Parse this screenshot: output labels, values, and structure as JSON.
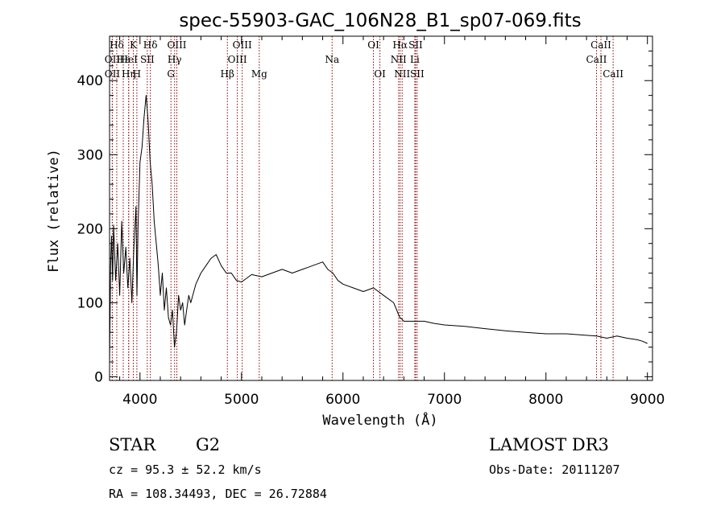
{
  "chart_data": {
    "type": "line",
    "title": "spec-55903-GAC_106N28_B1_sp07-069.fits",
    "xlabel": "Wavelength (Å)",
    "ylabel": "Flux (relative)",
    "xlim": [
      3700,
      9050
    ],
    "ylim": [
      -5,
      460
    ],
    "x_ticks": [
      4000,
      5000,
      6000,
      7000,
      8000,
      9000
    ],
    "y_ticks": [
      0,
      100,
      200,
      300,
      400
    ],
    "grid": false,
    "legend": "none",
    "line_color": "#000000",
    "marker_color": "#8b0000",
    "spectrum": {
      "x": [
        3700,
        3710,
        3720,
        3730,
        3740,
        3760,
        3780,
        3800,
        3820,
        3840,
        3860,
        3880,
        3900,
        3920,
        3940,
        3960,
        3970,
        3980,
        4000,
        4020,
        4040,
        4060,
        4080,
        4100,
        4120,
        4140,
        4160,
        4180,
        4200,
        4220,
        4240,
        4260,
        4280,
        4300,
        4320,
        4340,
        4360,
        4380,
        4400,
        4420,
        4440,
        4460,
        4480,
        4500,
        4550,
        4600,
        4650,
        4700,
        4750,
        4800,
        4850,
        4900,
        4950,
        5000,
        5100,
        5200,
        5300,
        5400,
        5500,
        5600,
        5700,
        5800,
        5850,
        5900,
        5950,
        6000,
        6100,
        6200,
        6300,
        6400,
        6500,
        6560,
        6580,
        6600,
        6700,
        6800,
        6900,
        7000,
        7200,
        7400,
        7600,
        7800,
        8000,
        8200,
        8400,
        8500,
        8600,
        8700,
        8800,
        8900,
        8950,
        9000
      ],
      "y": [
        20,
        150,
        190,
        130,
        205,
        130,
        180,
        110,
        210,
        140,
        175,
        120,
        160,
        100,
        175,
        230,
        110,
        200,
        290,
        310,
        350,
        380,
        345,
        290,
        260,
        210,
        180,
        150,
        110,
        140,
        90,
        120,
        80,
        70,
        90,
        40,
        60,
        110,
        90,
        100,
        70,
        90,
        110,
        100,
        125,
        140,
        150,
        160,
        165,
        150,
        140,
        140,
        130,
        128,
        138,
        135,
        140,
        145,
        140,
        145,
        150,
        155,
        145,
        140,
        130,
        125,
        120,
        115,
        120,
        110,
        100,
        80,
        78,
        75,
        75,
        75,
        72,
        70,
        68,
        65,
        62,
        60,
        58,
        58,
        56,
        55,
        52,
        55,
        52,
        50,
        48,
        45
      ]
    },
    "lines": [
      {
        "label": "Hδ",
        "x": 3771,
        "row": 1
      },
      {
        "label": "OII",
        "x": 3727,
        "row": 2
      },
      {
        "label": "OII",
        "x": 3727,
        "row": 3
      },
      {
        "label": "Hε",
        "x": 3835,
        "row": 2
      },
      {
        "label": "Hη",
        "x": 3889,
        "row": 3
      },
      {
        "label": "K",
        "x": 3934,
        "row": 1
      },
      {
        "label": "HeI",
        "x": 3888,
        "row": 2
      },
      {
        "label": "SII",
        "x": 4072,
        "row": 2
      },
      {
        "label": "H",
        "x": 3969,
        "row": 3
      },
      {
        "label": "Hδ",
        "x": 4102,
        "row": 1
      },
      {
        "label": "OIII",
        "x": 4363,
        "row": 1
      },
      {
        "label": "Hγ",
        "x": 4341,
        "row": 2
      },
      {
        "label": "G",
        "x": 4305,
        "row": 3
      },
      {
        "label": "OIII",
        "x": 5007,
        "row": 1
      },
      {
        "label": "OIII",
        "x": 4959,
        "row": 2
      },
      {
        "label": "Hβ",
        "x": 4861,
        "row": 3
      },
      {
        "label": "Mg",
        "x": 5175,
        "row": 3
      },
      {
        "label": "Na",
        "x": 5893,
        "row": 2
      },
      {
        "label": "OI",
        "x": 6300,
        "row": 1
      },
      {
        "label": "OI",
        "x": 6364,
        "row": 3
      },
      {
        "label": "Hα",
        "x": 6563,
        "row": 1
      },
      {
        "label": "SII",
        "x": 6716,
        "row": 1
      },
      {
        "label": "NII",
        "x": 6548,
        "row": 2
      },
      {
        "label": "Li",
        "x": 6708,
        "row": 2
      },
      {
        "label": "NII",
        "x": 6583,
        "row": 3
      },
      {
        "label": "SII",
        "x": 6731,
        "row": 3
      },
      {
        "label": "CaII",
        "x": 8542,
        "row": 1
      },
      {
        "label": "CaII",
        "x": 8498,
        "row": 2
      },
      {
        "label": "CaII",
        "x": 8662,
        "row": 3
      }
    ]
  },
  "footer": {
    "class_label": "STAR",
    "subclass": "G2",
    "survey": "LAMOST DR3",
    "redshift": "cz = 95.3 ± 52.2 km/s",
    "obs_date": "Obs-Date: 20111207",
    "coords": "RA = 108.34493, DEC =  26.72884"
  }
}
